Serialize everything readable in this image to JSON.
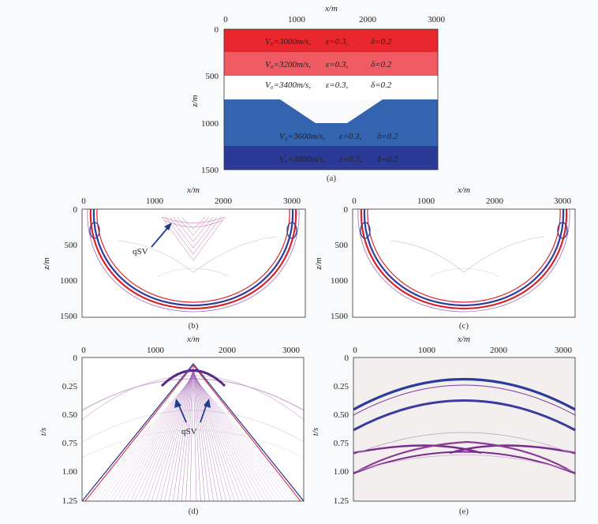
{
  "panels": {
    "a": {
      "caption": "(a)",
      "x_axis": {
        "label": "x/m",
        "ticks": [
          "0",
          "1000",
          "2000",
          "3000"
        ]
      },
      "y_axis": {
        "label": "z/m",
        "ticks": [
          "0",
          "500",
          "1000",
          "1500"
        ]
      },
      "layers": [
        {
          "v": "V₀=3000m/s,",
          "eps": "ε=0.3,",
          "delta": "δ=0.2",
          "color": "#e8282e"
        },
        {
          "v": "V₀=3200m/s,",
          "eps": "ε=0.3,",
          "delta": "δ=0.2",
          "color": "#ef5a63"
        },
        {
          "v": "V₀=3400m/s,",
          "eps": "ε=0.3,",
          "delta": "δ=0.2",
          "color": "#ffffff"
        },
        {
          "v": "V₀=3600m/s,",
          "eps": "ε=0.3,",
          "delta": "δ=0.2",
          "color": "#3463b0"
        },
        {
          "v": "V₀=3800m/s,",
          "eps": "ε=0.3,",
          "delta": "δ=0.2",
          "color": "#2c3a97"
        }
      ]
    },
    "b": {
      "caption": "(b)",
      "x_axis": {
        "label": "x/m",
        "ticks": [
          "0",
          "1000",
          "2000",
          "3000"
        ]
      },
      "y_axis": {
        "label": "z/m",
        "ticks": [
          "0",
          "500",
          "1000",
          "1500"
        ]
      },
      "annotation": "qSV"
    },
    "c": {
      "caption": "(c)",
      "x_axis": {
        "label": "x/m",
        "ticks": [
          "0",
          "1000",
          "2000",
          "3000"
        ]
      },
      "y_axis": {
        "label": "z/m",
        "ticks": [
          "0",
          "500",
          "1000",
          "1500"
        ]
      }
    },
    "d": {
      "caption": "(d)",
      "x_axis": {
        "label": "x/m",
        "ticks": [
          "0",
          "1000",
          "2000",
          "3000"
        ]
      },
      "y_axis": {
        "label": "t/s",
        "ticks": [
          "0",
          "0.25",
          "0.50",
          "0.75",
          "1.00",
          "1.25"
        ]
      },
      "annotation": "qSV"
    },
    "e": {
      "caption": "(e)",
      "x_axis": {
        "label": "x/m",
        "ticks": [
          "0",
          "1000",
          "2000",
          "3000"
        ]
      },
      "y_axis": {
        "label": "t/s",
        "ticks": [
          "0",
          "0.25",
          "0.50",
          "0.75",
          "1.00",
          "1.25"
        ]
      }
    }
  },
  "colors": {
    "red": "#d8232a",
    "blue": "#2b3c9a",
    "purple": "#7a2a8e"
  }
}
